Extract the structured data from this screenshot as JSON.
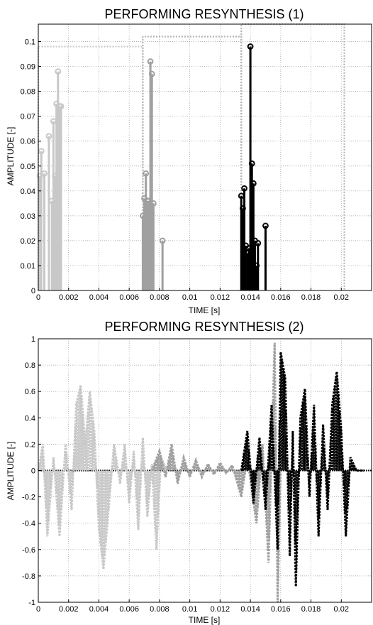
{
  "chart_data": [
    {
      "type": "stem",
      "title": "PERFORMING RESYNTHESIS (1)",
      "xlabel": "TIME [s]",
      "ylabel": "AMPLITUDE [-]",
      "xlim": [
        0,
        0.022
      ],
      "ylim": [
        0,
        0.107
      ],
      "grid": true,
      "xticks": [
        "0",
        "0.002",
        "0.004",
        "0.006",
        "0.008",
        "0.01",
        "0.012",
        "0.014",
        "0.016",
        "0.018",
        "0.02"
      ],
      "xtick_values": [
        0,
        0.002,
        0.004,
        0.006,
        0.008,
        0.01,
        0.012,
        0.014,
        0.016,
        0.018,
        0.02
      ],
      "yticks": [
        "0",
        "0.01",
        "0.02",
        "0.03",
        "0.04",
        "0.05",
        "0.06",
        "0.07",
        "0.08",
        "0.09",
        "0.1"
      ],
      "ytick_values": [
        0,
        0.01,
        0.02,
        0.03,
        0.04,
        0.05,
        0.06,
        0.07,
        0.08,
        0.09,
        0.1
      ],
      "series": [
        {
          "color": "#c8c8c8",
          "points": [
            [
              0.0001,
              0.046
            ],
            [
              0.0002,
              0.056
            ],
            [
              0.0004,
              0.047
            ],
            [
              0.0007,
              0.062
            ],
            [
              0.0009,
              0.036
            ],
            [
              0.001,
              0.068
            ],
            [
              0.0011,
              0.046
            ],
            [
              0.0012,
              0.075
            ],
            [
              0.0013,
              0.088
            ],
            [
              0.0014,
              0.074
            ],
            [
              0.0015,
              0.074
            ]
          ]
        },
        {
          "color": "#a0a0a0",
          "points": [
            [
              0.0069,
              0.03
            ],
            [
              0.007,
              0.037
            ],
            [
              0.0071,
              0.047
            ],
            [
              0.0072,
              0.036
            ],
            [
              0.0073,
              0.036
            ],
            [
              0.0074,
              0.092
            ],
            [
              0.0075,
              0.087
            ],
            [
              0.0076,
              0.035
            ],
            [
              0.0082,
              0.02
            ]
          ]
        },
        {
          "color": "#000000",
          "points": [
            [
              0.0134,
              0.038
            ],
            [
              0.0135,
              0.033
            ],
            [
              0.0136,
              0.041
            ],
            [
              0.0137,
              0.018
            ],
            [
              0.0138,
              0.015
            ],
            [
              0.0139,
              0.017
            ],
            [
              0.014,
              0.098
            ],
            [
              0.0141,
              0.051
            ],
            [
              0.0142,
              0.043
            ],
            [
              0.0143,
              0.02
            ],
            [
              0.0144,
              0.01
            ],
            [
              0.0145,
              0.019
            ],
            [
              0.015,
              0.026
            ]
          ]
        }
      ],
      "windows": [
        {
          "color": "#c8c8c8",
          "x0": 0,
          "x1": 0.0069,
          "level": 0.098
        },
        {
          "color": "#b4b4b4",
          "x0": 0.0069,
          "x1": 0.0134,
          "level": 0.102
        },
        {
          "color": "#b4b4b4",
          "x0": 0.0134,
          "x1": 0.0202,
          "level": 0.107
        }
      ]
    },
    {
      "type": "line",
      "title": "PERFORMING RESYNTHESIS (2)",
      "xlabel": "TIME [s]",
      "ylabel": "AMPLITUDE [-]",
      "xlim": [
        0,
        0.022
      ],
      "ylim": [
        -1,
        1
      ],
      "grid": true,
      "xticks": [
        "0",
        "0.002",
        "0.004",
        "0.006",
        "0.008",
        "0.01",
        "0.012",
        "0.014",
        "0.016",
        "0.018",
        "0.02"
      ],
      "xtick_values": [
        0,
        0.002,
        0.004,
        0.006,
        0.008,
        0.01,
        0.012,
        0.014,
        0.016,
        0.018,
        0.02
      ],
      "yticks": [
        "1",
        "0.8",
        "0.6",
        "0.4",
        "0.2",
        "0",
        "-0.2",
        "-0.4",
        "-0.6",
        "-0.8",
        "-1"
      ],
      "ytick_values": [
        1,
        0.8,
        0.6,
        0.4,
        0.2,
        0,
        -0.2,
        -0.4,
        -0.6,
        -0.8,
        -1
      ],
      "series": [
        {
          "color": "#c8c8c8",
          "segment": [
            0,
            0.0085
          ],
          "envelope": [
            [
              0,
              0
            ],
            [
              0.0003,
              0.2
            ],
            [
              0.0006,
              -0.5
            ],
            [
              0.001,
              0.1
            ],
            [
              0.0014,
              -0.5
            ],
            [
              0.0018,
              0.2
            ],
            [
              0.0022,
              -0.3
            ],
            [
              0.0025,
              0.5
            ],
            [
              0.0028,
              0.65
            ],
            [
              0.0031,
              0.2
            ],
            [
              0.0034,
              0.6
            ],
            [
              0.0037,
              0.3
            ],
            [
              0.004,
              -0.45
            ],
            [
              0.0043,
              -0.75
            ],
            [
              0.0046,
              -0.35
            ],
            [
              0.005,
              0.2
            ],
            [
              0.0054,
              -0.1
            ],
            [
              0.0057,
              0.2
            ],
            [
              0.006,
              -0.25
            ],
            [
              0.0063,
              0.15
            ],
            [
              0.0066,
              -0.45
            ],
            [
              0.0069,
              0.25
            ],
            [
              0.0072,
              -0.35
            ],
            [
              0.0075,
              0.05
            ],
            [
              0.0078,
              -0.6
            ],
            [
              0.0081,
              0.1
            ],
            [
              0.0085,
              0
            ]
          ]
        },
        {
          "color": "#a0a0a0",
          "segment": [
            0.0075,
            0.016
          ],
          "envelope": [
            [
              0.0075,
              0
            ],
            [
              0.008,
              0.15
            ],
            [
              0.0084,
              -0.05
            ],
            [
              0.0088,
              0.2
            ],
            [
              0.0092,
              -0.1
            ],
            [
              0.0096,
              0.1
            ],
            [
              0.01,
              -0.05
            ],
            [
              0.0104,
              0.08
            ],
            [
              0.0108,
              -0.05
            ],
            [
              0.0112,
              0.05
            ],
            [
              0.0116,
              -0.03
            ],
            [
              0.012,
              0.06
            ],
            [
              0.0124,
              -0.02
            ],
            [
              0.0128,
              0.04
            ],
            [
              0.0134,
              -0.2
            ],
            [
              0.0138,
              0.1
            ],
            [
              0.0144,
              -0.4
            ],
            [
              0.0148,
              0.2
            ],
            [
              0.0152,
              -0.7
            ],
            [
              0.0156,
              0.97
            ],
            [
              0.0158,
              -1
            ],
            [
              0.016,
              0
            ]
          ]
        },
        {
          "color": "#000000",
          "segment": [
            0.0134,
            0.0215
          ],
          "envelope": [
            [
              0.0134,
              0
            ],
            [
              0.0138,
              0.3
            ],
            [
              0.0142,
              -0.25
            ],
            [
              0.0146,
              0.25
            ],
            [
              0.015,
              -0.3
            ],
            [
              0.0154,
              0.5
            ],
            [
              0.0158,
              -0.6
            ],
            [
              0.016,
              0.9
            ],
            [
              0.0163,
              0.7
            ],
            [
              0.0166,
              -0.65
            ],
            [
              0.0168,
              0.3
            ],
            [
              0.017,
              -0.88
            ],
            [
              0.0173,
              0.4
            ],
            [
              0.0176,
              0.62
            ],
            [
              0.0179,
              -0.2
            ],
            [
              0.0182,
              0.5
            ],
            [
              0.0185,
              -0.5
            ],
            [
              0.0188,
              0.35
            ],
            [
              0.0191,
              -0.3
            ],
            [
              0.0194,
              0.5
            ],
            [
              0.0197,
              0.75
            ],
            [
              0.02,
              0.3
            ],
            [
              0.0203,
              -0.5
            ],
            [
              0.0206,
              0.1
            ],
            [
              0.021,
              0
            ],
            [
              0.0215,
              0
            ]
          ]
        }
      ]
    }
  ]
}
